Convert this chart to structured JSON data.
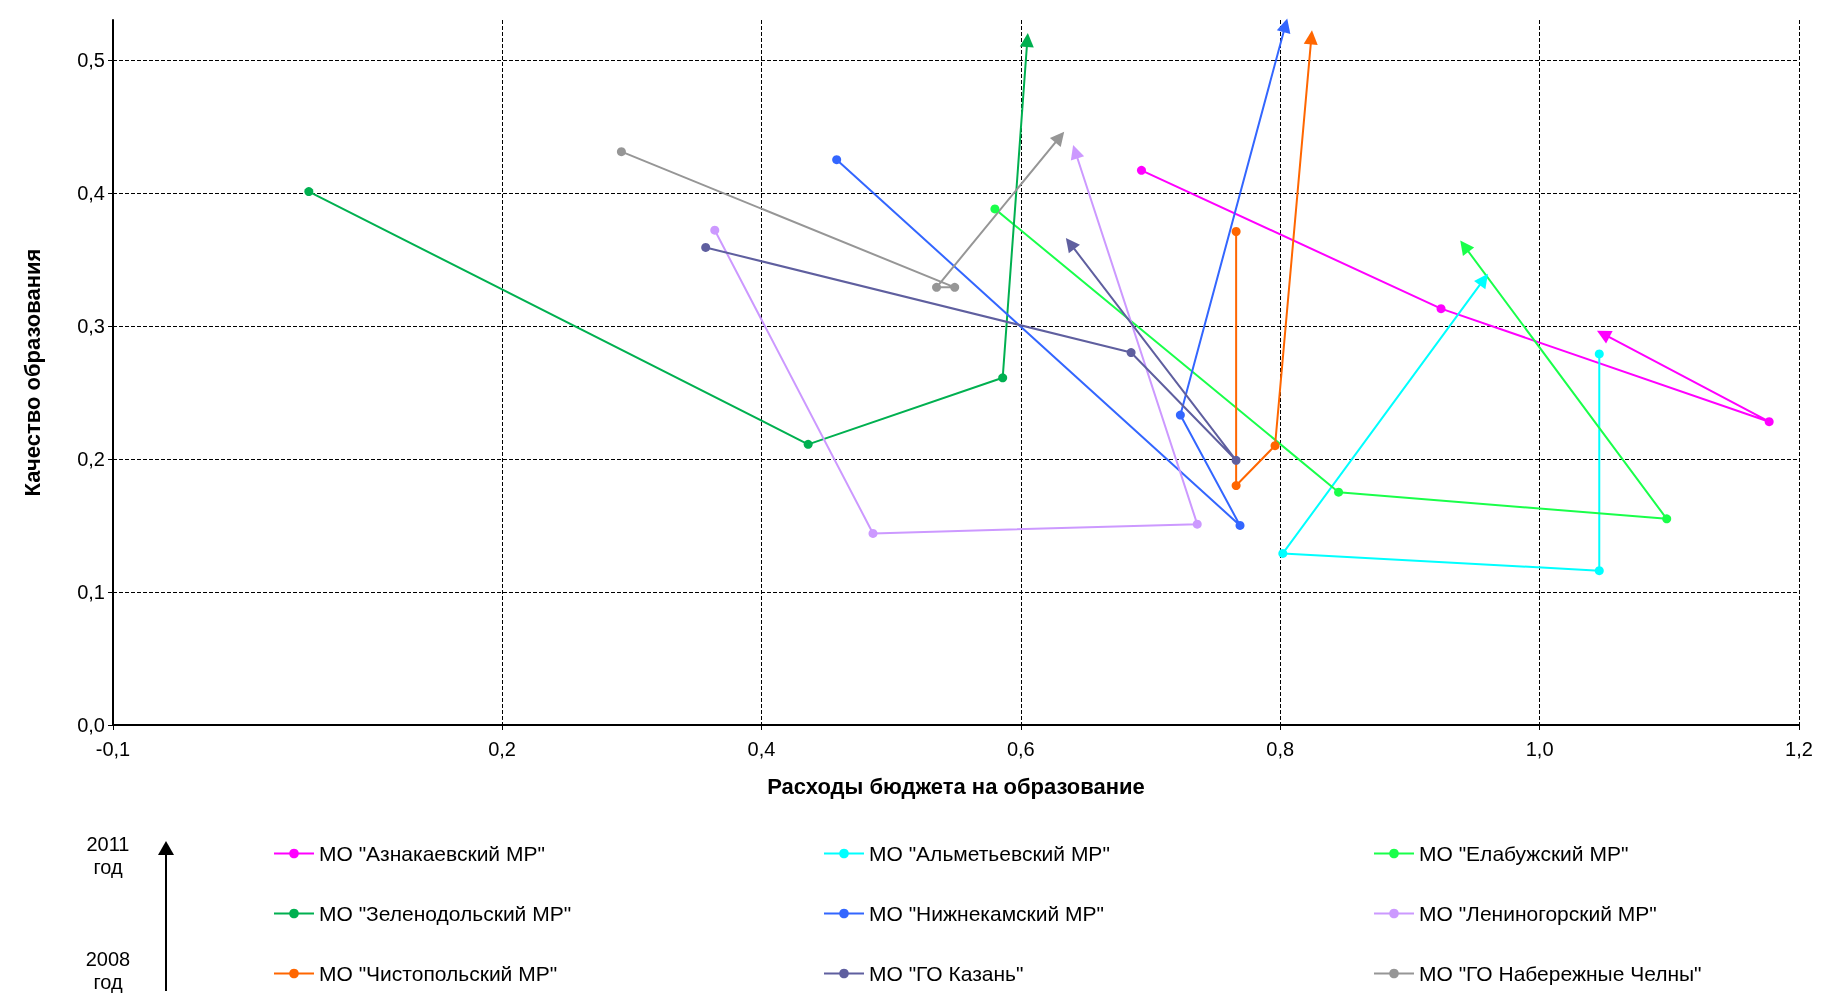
{
  "chart_data": {
    "type": "line",
    "xlabel": "Расходы бюджета на образование",
    "ylabel": "Качество образования",
    "xlim": [
      -0.1,
      1.2
    ],
    "xticks": [
      {
        "value": -0.1,
        "label": "-0,1"
      },
      {
        "value": 0.2,
        "label": "0,2"
      },
      {
        "value": 0.4,
        "label": "0,4"
      },
      {
        "value": 0.6,
        "label": "0,6"
      },
      {
        "value": 0.8,
        "label": "0,8"
      },
      {
        "value": 1.0,
        "label": "1,0"
      },
      {
        "value": 1.2,
        "label": "1,2"
      }
    ],
    "ylim": [
      0,
      0.53
    ],
    "yticks": [
      {
        "value": 0,
        "label": "0,0"
      },
      {
        "value": 0.1,
        "label": "0,1"
      },
      {
        "value": 0.2,
        "label": "0,2"
      },
      {
        "value": 0.3,
        "label": "0,3"
      },
      {
        "value": 0.4,
        "label": "0,4"
      },
      {
        "value": 0.5,
        "label": "0,5"
      }
    ],
    "grid": true,
    "legend": "bottom",
    "marker": "circle",
    "line_style": "solid",
    "annotations": [
      "2011 год",
      "2008 год"
    ],
    "series": [
      {
        "name": "МО \"Азнакаевский МР\"",
        "color": "#ff00ff",
        "x": [
          0.693,
          0.924,
          1.177,
          1.049
        ],
        "values": [
          0.417,
          0.313,
          0.228,
          0.294
        ]
      },
      {
        "name": "МО \"Альметьевский МР\"",
        "color": "#00ffff",
        "x": [
          1.046,
          1.046,
          0.802,
          0.957
        ],
        "values": [
          0.279,
          0.116,
          0.129,
          0.335
        ]
      },
      {
        "name": "МО \"Елабужский МР\"",
        "color": "#19ff4a",
        "x": [
          0.58,
          0.845,
          1.098,
          0.942
        ],
        "values": [
          0.388,
          0.175,
          0.155,
          0.36
        ]
      },
      {
        "name": "МО \"Зеленодольский МР\"",
        "color": "#00b050",
        "x": [
          0.051,
          0.436,
          0.586,
          0.605
        ],
        "values": [
          0.401,
          0.211,
          0.261,
          0.515
        ]
      },
      {
        "name": "МО \"Нижнекамский МР\"",
        "color": "#3366ff",
        "x": [
          0.458,
          0.769,
          0.723,
          0.804
        ],
        "values": [
          0.425,
          0.15,
          0.233,
          0.526
        ]
      },
      {
        "name": "МО \"Лениногорский МР\"",
        "color": "#cc99ff",
        "x": [
          0.364,
          0.486,
          0.736,
          0.642
        ],
        "values": [
          0.372,
          0.144,
          0.151,
          0.431
        ]
      },
      {
        "name": "МО \"Чистопольский МР\"",
        "color": "#ff6600",
        "x": [
          0.766,
          0.766,
          0.796,
          0.824
        ],
        "values": [
          0.371,
          0.18,
          0.21,
          0.517
        ]
      },
      {
        "name": "МО \"ГО Казань\"",
        "color": "#5f5f9f",
        "x": [
          0.357,
          0.685,
          0.766,
          0.638
        ],
        "values": [
          0.359,
          0.28,
          0.199,
          0.362
        ]
      },
      {
        "name": "МО \"ГО Набережные Челны\"",
        "color": "#969696",
        "x": [
          0.292,
          0.549,
          0.535,
          0.63
        ],
        "values": [
          0.431,
          0.329,
          0.329,
          0.442
        ]
      }
    ]
  }
}
